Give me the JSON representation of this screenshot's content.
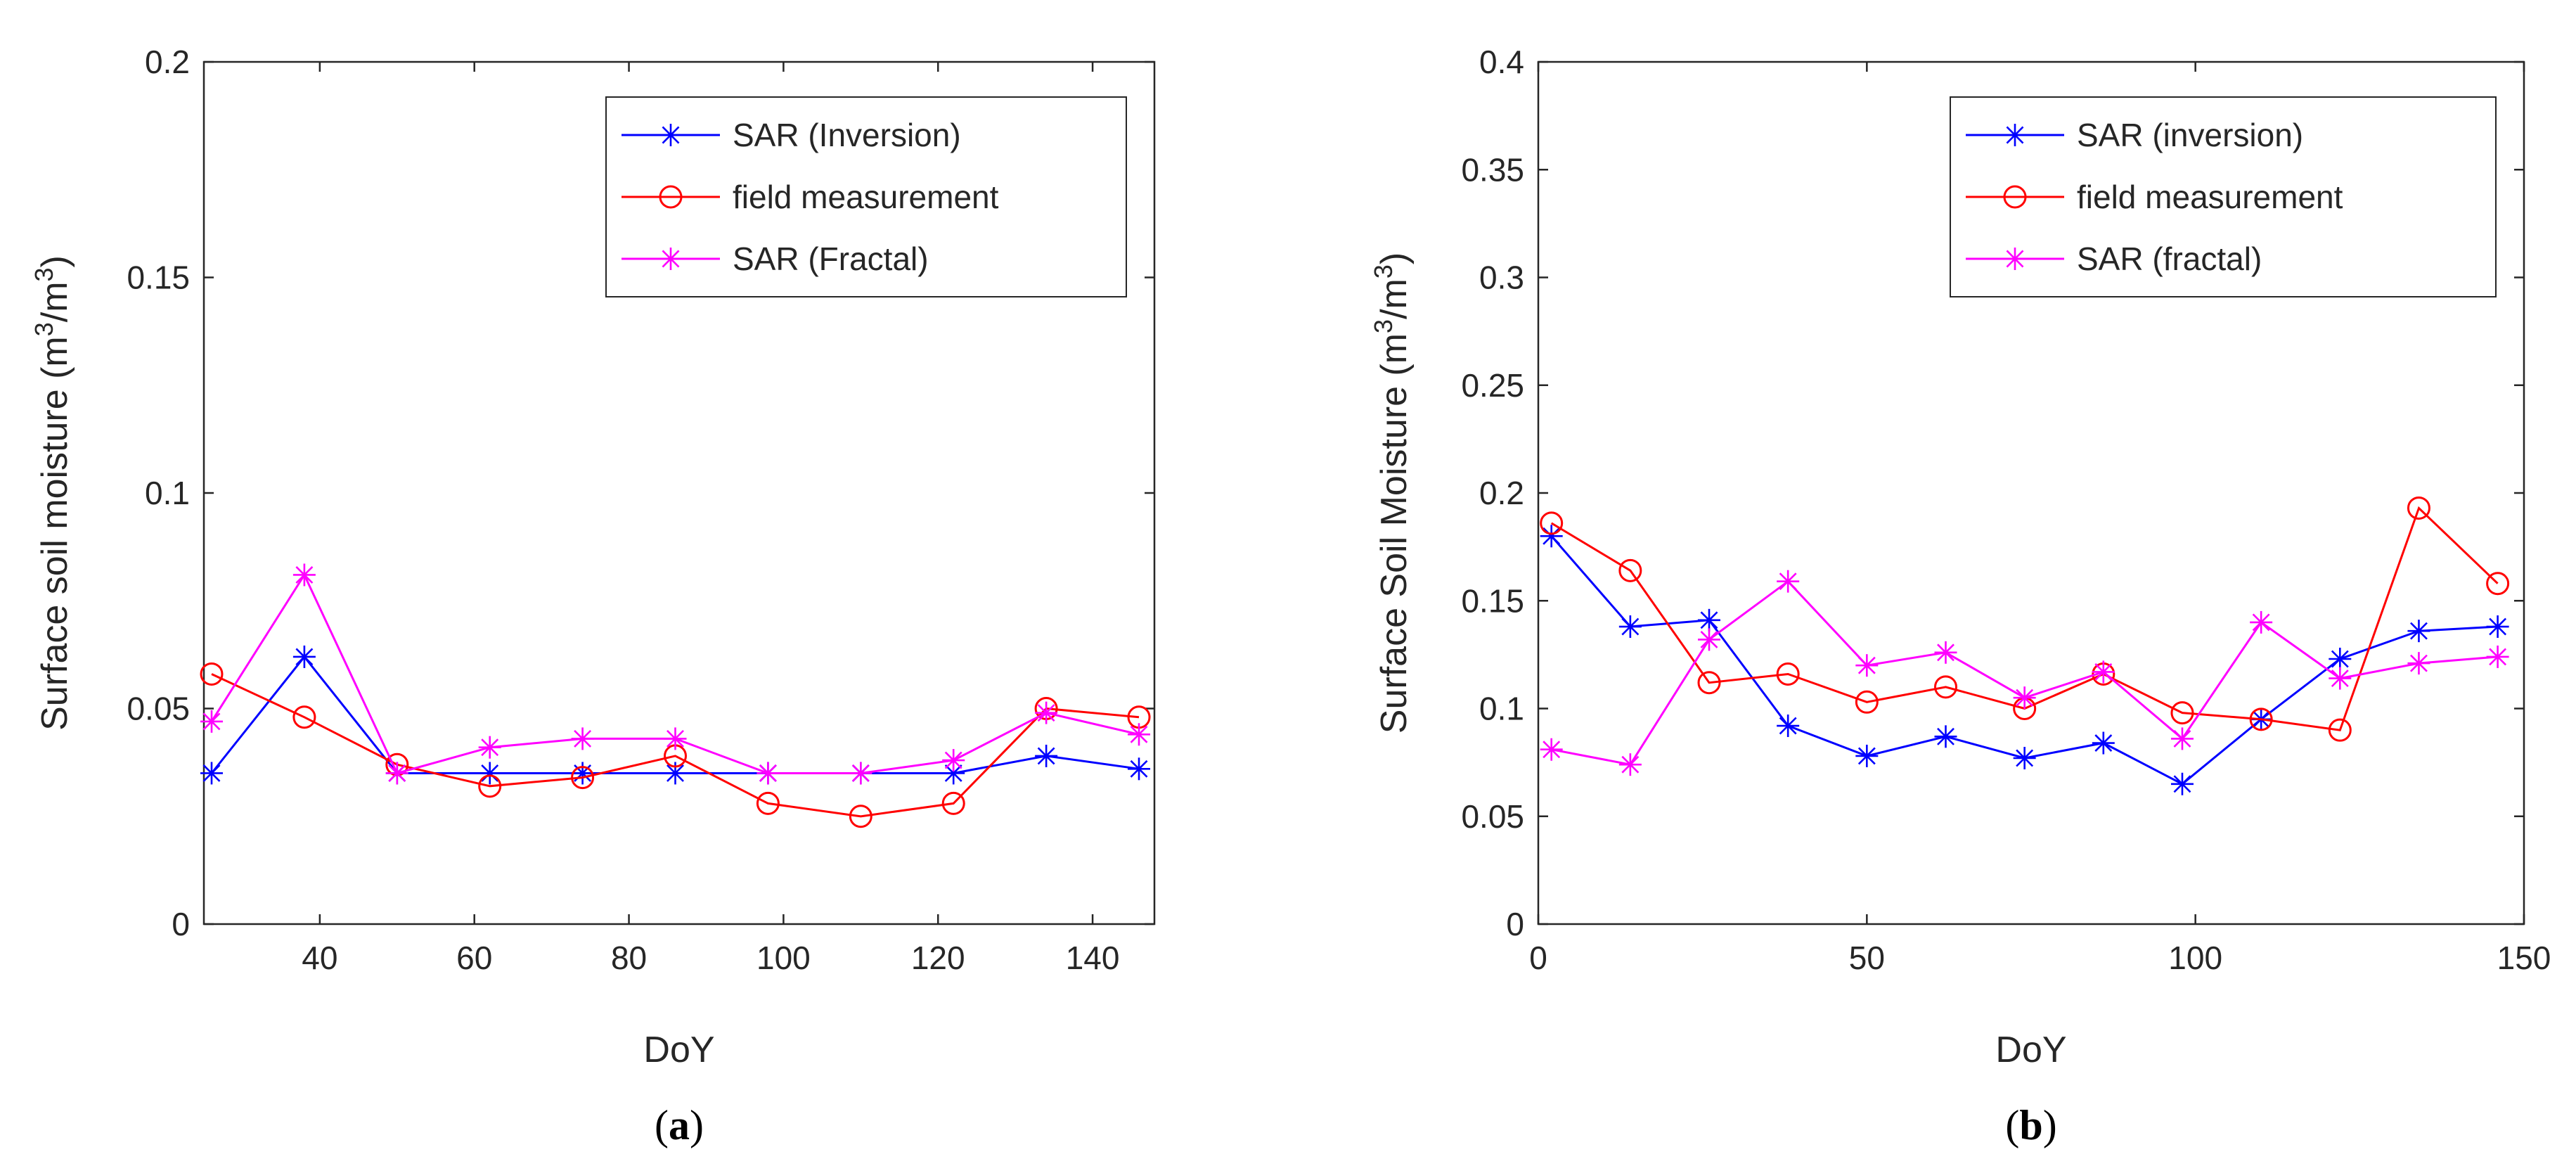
{
  "chart_data": [
    {
      "type": "line",
      "panel_label": {
        "open": "(",
        "letter": "a",
        "close": ")"
      },
      "xlabel": "DoY",
      "ylabel": {
        "text": "Surface soil moisture (m",
        "sup1": "3",
        "mid": "/m",
        "sup2": "3",
        "close": ")"
      },
      "xlim": [
        25,
        148
      ],
      "ylim": [
        0,
        0.2
      ],
      "xticks": [
        40,
        60,
        80,
        100,
        120,
        140
      ],
      "xtick_labels": [
        "40",
        "60",
        "80",
        "100",
        "120",
        "140"
      ],
      "yticks": [
        0,
        0.05,
        0.1,
        0.15,
        0.2
      ],
      "ytick_labels": [
        "0",
        "0.05",
        "0.1",
        "0.15",
        "0.2"
      ],
      "grid": false,
      "legend_placement": "top-right",
      "x": [
        26,
        38,
        50,
        62,
        74,
        86,
        98,
        110,
        122,
        134,
        146
      ],
      "series": [
        {
          "name": "SAR (Inversion)",
          "color": "#0000ff",
          "marker": "asterisk",
          "values": [
            0.035,
            0.062,
            0.035,
            0.035,
            0.035,
            0.035,
            0.035,
            0.035,
            0.035,
            0.039,
            0.036
          ]
        },
        {
          "name": "field measurement",
          "color": "#ff0000",
          "marker": "circle",
          "values": [
            0.058,
            0.048,
            0.037,
            0.032,
            0.034,
            0.039,
            0.028,
            0.025,
            0.028,
            0.05,
            0.048
          ]
        },
        {
          "name": "SAR (Fractal)",
          "color": "#ff00ff",
          "marker": "asterisk",
          "values": [
            0.047,
            0.081,
            0.035,
            0.041,
            0.043,
            0.043,
            0.035,
            0.035,
            0.038,
            0.049,
            0.044
          ]
        }
      ]
    },
    {
      "type": "line",
      "panel_label": {
        "open": "(",
        "letter": "b",
        "close": ")"
      },
      "xlabel": "DoY",
      "ylabel": {
        "text": "Surface Soil Moisture (m",
        "sup1": "3",
        "mid": "/m",
        "sup2": "3",
        "close": ")"
      },
      "xlim": [
        0,
        150
      ],
      "ylim": [
        0,
        0.4
      ],
      "xticks": [
        0,
        50,
        100,
        150
      ],
      "xtick_labels": [
        "0",
        "50",
        "100",
        "150"
      ],
      "yticks": [
        0,
        0.05,
        0.1,
        0.15,
        0.2,
        0.25,
        0.3,
        0.35,
        0.4
      ],
      "ytick_labels": [
        "0",
        "0.05",
        "0.1",
        "0.15",
        "0.2",
        "0.25",
        "0.3",
        "0.35",
        "0.4"
      ],
      "grid": false,
      "legend_placement": "top-right",
      "x": [
        2,
        14,
        26,
        38,
        50,
        62,
        74,
        86,
        98,
        110,
        122,
        134,
        146
      ],
      "series": [
        {
          "name": "SAR (inversion)",
          "color": "#0000ff",
          "marker": "asterisk",
          "values": [
            0.18,
            0.138,
            0.141,
            0.092,
            0.078,
            0.087,
            0.077,
            0.084,
            0.065,
            0.095,
            0.123,
            0.136,
            0.138
          ]
        },
        {
          "name": "field measurement",
          "color": "#ff0000",
          "marker": "circle",
          "values": [
            0.186,
            0.164,
            0.112,
            0.116,
            0.103,
            0.11,
            0.1,
            0.116,
            0.098,
            0.095,
            0.09,
            0.193,
            0.158
          ]
        },
        {
          "name": "SAR (fractal)",
          "color": "#ff00ff",
          "marker": "asterisk",
          "values": [
            0.081,
            0.074,
            0.132,
            0.159,
            0.12,
            0.126,
            0.105,
            0.117,
            0.086,
            0.14,
            0.114,
            0.121,
            0.124
          ]
        }
      ]
    }
  ]
}
